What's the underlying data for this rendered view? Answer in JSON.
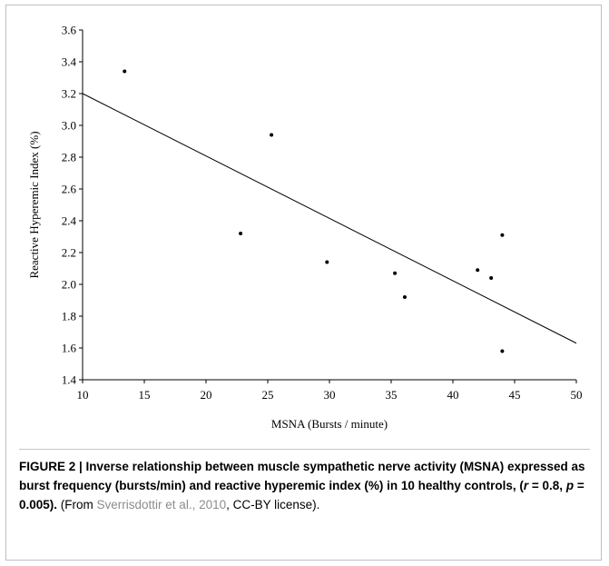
{
  "chart_data": {
    "type": "scatter",
    "title": "",
    "xlabel": "MSNA (Bursts / minute)",
    "ylabel": "Reactive Hyperemic Index (%)",
    "xlim": [
      10,
      50
    ],
    "ylim": [
      1.4,
      3.6
    ],
    "x_ticks": [
      "10",
      "15",
      "20",
      "25",
      "30",
      "35",
      "40",
      "45",
      "50"
    ],
    "y_ticks": [
      "1.4",
      "1.6",
      "1.8",
      "2.0",
      "2.2",
      "2.4",
      "2.6",
      "2.8",
      "3.0",
      "3.2",
      "3.4",
      "3.6"
    ],
    "grid": false,
    "legend": "none",
    "points": [
      {
        "x": 13.4,
        "y": 3.34
      },
      {
        "x": 22.8,
        "y": 2.32
      },
      {
        "x": 25.3,
        "y": 2.94
      },
      {
        "x": 29.8,
        "y": 2.14
      },
      {
        "x": 35.3,
        "y": 2.07
      },
      {
        "x": 36.1,
        "y": 1.92
      },
      {
        "x": 42.0,
        "y": 2.09
      },
      {
        "x": 43.1,
        "y": 2.04
      },
      {
        "x": 44.0,
        "y": 2.31
      },
      {
        "x": 44.0,
        "y": 1.58
      }
    ],
    "trendline": {
      "x": [
        10,
        50
      ],
      "y": [
        3.2,
        1.63
      ]
    },
    "colors": {
      "points": "#000000",
      "line": "#000000"
    }
  },
  "caption": {
    "label": "FIGURE 2 | Inverse relationship between muscle sympathetic nerve activity (MSNA) expressed as burst frequency (bursts/min) and reactive hyperemic index (%) in 10 healthy controls, (",
    "r_symbol": "r",
    "r_value": " = 0.8, ",
    "p_symbol": "p",
    "p_value": " = 0.005).",
    "source_prefix": " (From ",
    "source_citation": "Sverrisdottir et al., 2010",
    "source_suffix": ", CC-BY license)."
  }
}
